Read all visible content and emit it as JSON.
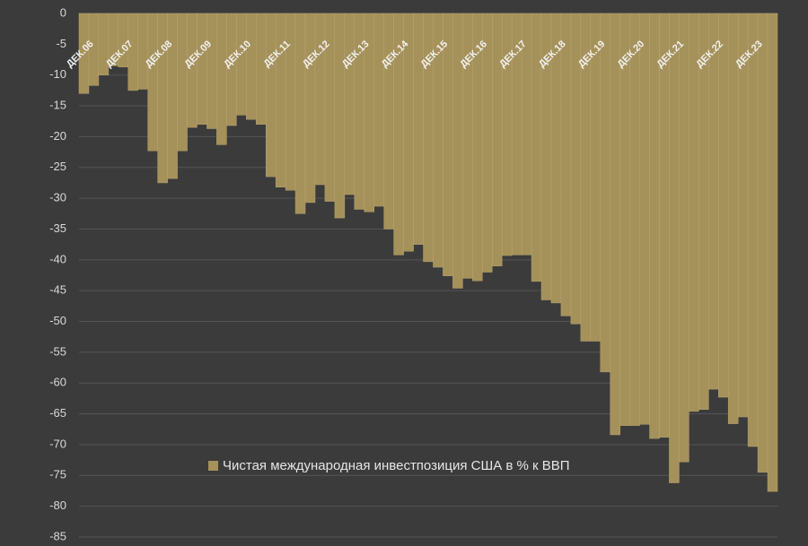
{
  "chart_data": {
    "type": "bar",
    "legend": "Чистая международная инвестпозиция США в % к ВВП",
    "color": "#a5915a",
    "categories": [
      "ДЕК.06",
      null,
      null,
      null,
      "ДЕК.07",
      null,
      null,
      null,
      "ДЕК.08",
      null,
      null,
      null,
      "ДЕК.09",
      null,
      null,
      null,
      "ДЕК.10",
      null,
      null,
      null,
      "ДЕК.11",
      null,
      null,
      null,
      "ДЕК.12",
      null,
      null,
      null,
      "ДЕК.13",
      null,
      null,
      null,
      "ДЕК.14",
      null,
      null,
      null,
      "ДЕК.15",
      null,
      null,
      null,
      "ДЕК.16",
      null,
      null,
      null,
      "ДЕК.17",
      null,
      null,
      null,
      "ДЕК.18",
      null,
      null,
      null,
      "ДЕК.19",
      null,
      null,
      null,
      "ДЕК.20",
      null,
      null,
      null,
      "ДЕК.21",
      null,
      null,
      null,
      "ДЕК.22",
      null,
      null,
      null,
      "ДЕК.23",
      null,
      null
    ],
    "values": [
      -13,
      -11.7,
      -10,
      -8.5,
      -8.7,
      -12.5,
      -12.3,
      -22.3,
      -27.5,
      -26.8,
      -22.3,
      -18.5,
      -18,
      -18.7,
      -21.3,
      -18.2,
      -16.5,
      -17.2,
      -18,
      -26.5,
      -28.2,
      -28.7,
      -32.5,
      -30.7,
      -27.8,
      -30.5,
      -33.2,
      -29.4,
      -31.8,
      -32.2,
      -31.3,
      -35,
      -39.2,
      -38.6,
      -37.5,
      -40.3,
      -41.2,
      -42.6,
      -44.6,
      -43,
      -43.4,
      -42,
      -41,
      -39.3,
      -39.2,
      -39.2,
      -43.5,
      -46.5,
      -47,
      -49.1,
      -50.4,
      -53.2,
      -53.2,
      -58.2,
      -68.4,
      -66.9,
      -66.9,
      -66.7,
      -69,
      -68.8,
      -76.2,
      -72.8,
      -64.6,
      -64.3,
      -61,
      -62.3,
      -66.6,
      -65.5,
      -70.3,
      -74.5,
      -77.6
    ],
    "ylim": [
      -85,
      0
    ],
    "yticks": [
      -85,
      -80,
      -75,
      -70,
      -65,
      -60,
      -55,
      -50,
      -45,
      -40,
      -35,
      -30,
      -25,
      -20,
      -15,
      -10,
      -5,
      0
    ],
    "grid": true
  }
}
